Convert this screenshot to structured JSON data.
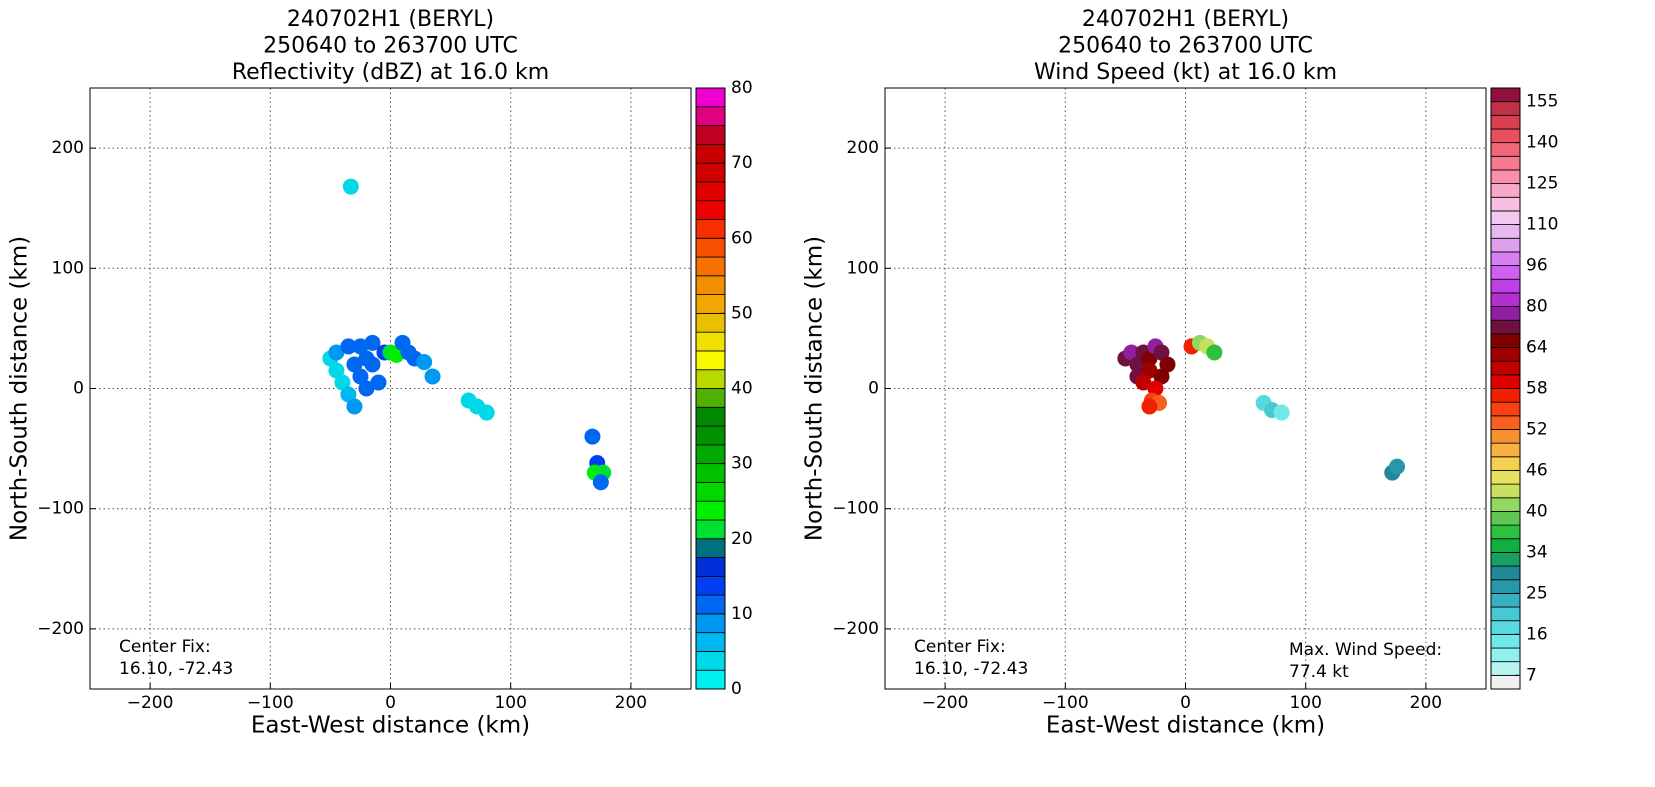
{
  "chart_data": [
    {
      "type": "heatmap",
      "title": [
        "240702H1 (BERYL)",
        "250640 to 263700 UTC",
        "Reflectivity (dBZ) at 16.0 km"
      ],
      "xlabel": "East-West distance (km)",
      "ylabel": "North-South distance (km)",
      "xlim": [
        -250,
        250
      ],
      "ylim": [
        -250,
        250
      ],
      "xticks": [
        {
          "value": -200,
          "label": "−200"
        },
        {
          "value": -100,
          "label": "−100"
        },
        0,
        100,
        200
      ],
      "yticks": [
        {
          "value": -200,
          "label": "−200"
        },
        {
          "value": -100,
          "label": "−100"
        },
        0,
        100,
        200
      ],
      "grid": true,
      "colorbar": {
        "levels": [
          0,
          2.5,
          5,
          7.5,
          10,
          12.5,
          15,
          17.5,
          20,
          22.5,
          25,
          27.5,
          30,
          32.5,
          35,
          37.5,
          40,
          42.5,
          45,
          47.5,
          50,
          52.5,
          55,
          57.5,
          60,
          62.5,
          65,
          67.5,
          70,
          72.5,
          75,
          77.5,
          80
        ],
        "colors": [
          "#00f0f0",
          "#00d8e8",
          "#00b8f0",
          "#0098f0",
          "#0068f0",
          "#0040f0",
          "#0030d8",
          "#007080",
          "#00e030",
          "#00f000",
          "#00d800",
          "#00c000",
          "#00a800",
          "#009000",
          "#008800",
          "#50b000",
          "#b8d800",
          "#f8f800",
          "#f0e000",
          "#e8c000",
          "#f0a800",
          "#f09000",
          "#f87000",
          "#f85000",
          "#f83000",
          "#f00000",
          "#e00000",
          "#d00000",
          "#c80000",
          "#c00020",
          "#e00080",
          "#f000d0",
          "#f000f0",
          "#c040e0",
          "#a050d0",
          "#8050b0",
          "#502860",
          "#000000"
        ],
        "ticks": [
          0,
          10,
          20,
          30,
          40,
          50,
          60,
          70,
          80
        ]
      },
      "echoes": {
        "x": [
          -50,
          -45,
          -40,
          -35,
          -30,
          -45,
          -35,
          -25,
          -15,
          -20,
          -30,
          -25,
          -15,
          -5,
          0,
          5,
          10,
          15,
          20,
          28,
          -20,
          -10,
          35,
          65,
          72,
          80,
          168,
          172,
          170,
          177,
          175,
          -33
        ],
        "y": [
          25,
          15,
          5,
          -5,
          -15,
          30,
          35,
          35,
          38,
          25,
          20,
          10,
          20,
          30,
          30,
          28,
          38,
          30,
          25,
          22,
          0,
          5,
          10,
          -10,
          -15,
          -20,
          -40,
          -62,
          -70,
          -70,
          -78,
          168
        ],
        "values": [
          3,
          4,
          4,
          6,
          8,
          8,
          10,
          11,
          12,
          12,
          11,
          10,
          12,
          14,
          22,
          24,
          12,
          11,
          10,
          9,
          10,
          11,
          8,
          3,
          4,
          3,
          12,
          13,
          24,
          22,
          12,
          3
        ]
      },
      "annotations": [
        {
          "corner": "lower left",
          "lines": [
            "Center Fix:",
            "16.10, -72.43"
          ]
        }
      ]
    },
    {
      "type": "heatmap",
      "title": [
        "240702H1 (BERYL)",
        "250640 to 263700 UTC",
        "Wind Speed (kt) at 16.0 km"
      ],
      "xlabel": "East-West distance (km)",
      "ylabel": "North-South distance (km)",
      "xlim": [
        -250,
        250
      ],
      "ylim": [
        -250,
        250
      ],
      "xticks": [
        {
          "value": -200,
          "label": "−200"
        },
        {
          "value": -100,
          "label": "−100"
        },
        0,
        100,
        200
      ],
      "yticks": [
        {
          "value": -200,
          "label": "−200"
        },
        {
          "value": -100,
          "label": "−100"
        },
        0,
        100,
        200
      ],
      "grid": true,
      "colorbar": {
        "levels": [
          4,
          7,
          10,
          13,
          16,
          19,
          22,
          25,
          28,
          31,
          34,
          36,
          38,
          40,
          42,
          44,
          46,
          48,
          50,
          52,
          54,
          56,
          58,
          60,
          62,
          64,
          70,
          75,
          80,
          85,
          90,
          96,
          101,
          105,
          110,
          115,
          120,
          125,
          130,
          135,
          140,
          145,
          150,
          155,
          160
        ],
        "colors": [
          "#f0f0f0",
          "#b8f4f0",
          "#90f0f0",
          "#70e8e8",
          "#58d8e0",
          "#48c8d0",
          "#38b0c0",
          "#2898a8",
          "#208898",
          "#18a060",
          "#10b040",
          "#30c040",
          "#60c850",
          "#90d860",
          "#c8e060",
          "#e8e060",
          "#f8d050",
          "#f8b040",
          "#f89030",
          "#f86020",
          "#f84010",
          "#f02000",
          "#e00000",
          "#c00000",
          "#a00000",
          "#800000",
          "#701040",
          "#9020a0",
          "#b030d0",
          "#c040e8",
          "#d060f0",
          "#d880f0",
          "#e0a0f0",
          "#e8b8f0",
          "#f0c8f0",
          "#f8c0e0",
          "#f8a8c8",
          "#f890a8",
          "#f87890",
          "#f06878",
          "#e85060",
          "#d84050",
          "#c03048",
          "#901040"
        ],
        "ticks": [
          7,
          16,
          25,
          34,
          40,
          46,
          52,
          58,
          64,
          80,
          96,
          110,
          125,
          140,
          155
        ]
      },
      "echoes": {
        "x": [
          -50,
          -45,
          -40,
          -35,
          -30,
          -25,
          -20,
          -15,
          -40,
          -30,
          -20,
          -35,
          -25,
          -28,
          -22,
          -30,
          5,
          12,
          18,
          24,
          65,
          72,
          80,
          172,
          176
        ],
        "y": [
          25,
          30,
          20,
          30,
          25,
          35,
          30,
          20,
          10,
          15,
          10,
          5,
          0,
          -10,
          -12,
          -15,
          35,
          38,
          35,
          30,
          -12,
          -18,
          -20,
          -70,
          -65
        ],
        "values": [
          72,
          76,
          70,
          74,
          66,
          78,
          72,
          68,
          70,
          62,
          66,
          60,
          58,
          55,
          52,
          57,
          56,
          40,
          42,
          36,
          16,
          19,
          15,
          30,
          25
        ]
      },
      "annotations": [
        {
          "corner": "lower left",
          "lines": [
            "Center Fix:",
            "16.10, -72.43"
          ]
        },
        {
          "corner": "lower right",
          "lines": [
            "Max. Wind Speed:",
            "77.4 kt"
          ]
        }
      ]
    }
  ]
}
